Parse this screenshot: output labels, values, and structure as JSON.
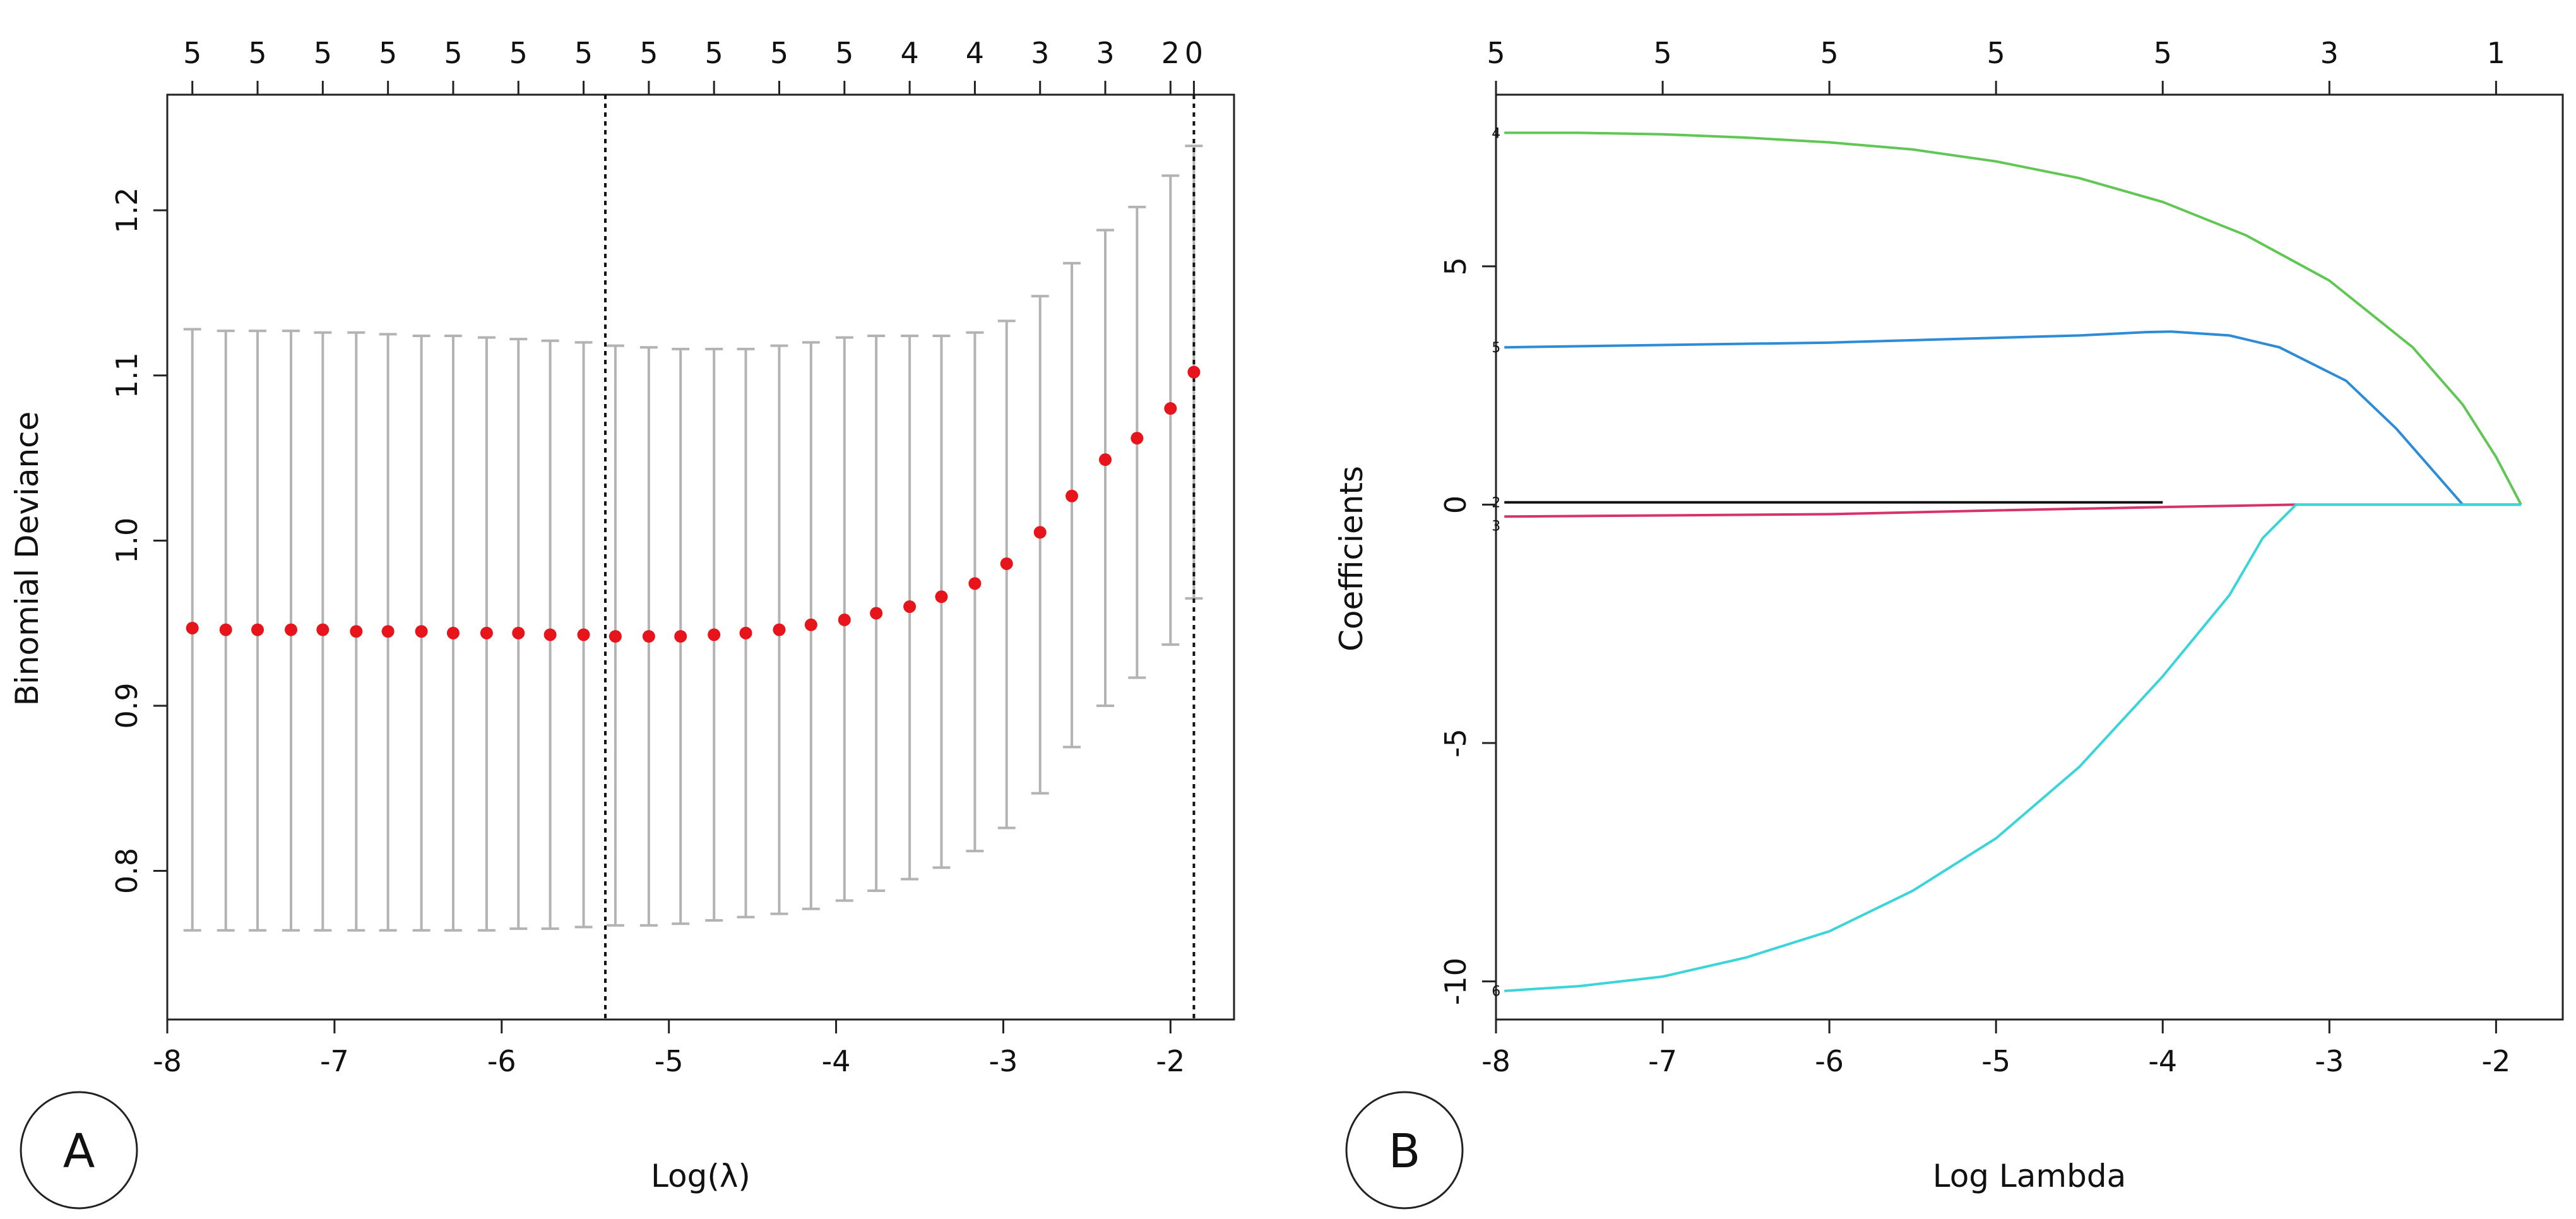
{
  "colors": {
    "errorbar": "#b3b3b3",
    "point": "#e8141c",
    "refline": "#111111",
    "axis": "#222222",
    "series": [
      "#111111",
      "#d6336c",
      "#61c754",
      "#2e8bd6",
      "#3ad4d9"
    ]
  },
  "chart_data": [
    {
      "type": "scatter",
      "panel": "A",
      "title": "",
      "xlabel": "Log(λ)",
      "ylabel": "Binomial Deviance",
      "xlim": [
        -8.0,
        -1.62
      ],
      "ylim": [
        0.71,
        1.27
      ],
      "xticks": [
        -8,
        -7,
        -6,
        -5,
        -4,
        -3,
        -2
      ],
      "xtick_labels": [
        "-8",
        "-7",
        "-6",
        "-5",
        "-4",
        "-3",
        "-2"
      ],
      "yticks": [
        0.8,
        0.9,
        1.0,
        1.1,
        1.2
      ],
      "ytick_labels": [
        "0.8",
        "0.9",
        "1.0",
        "1.1",
        "1.2"
      ],
      "top_axis_positions": [
        -7.85,
        -7.46,
        -7.07,
        -6.68,
        -6.29,
        -5.9,
        -5.51,
        -5.12,
        -4.73,
        -4.34,
        -3.95,
        -3.56,
        -3.17,
        -2.78,
        -2.39,
        -2.0,
        -1.86
      ],
      "top_axis_labels": [
        "5",
        "5",
        "5",
        "5",
        "5",
        "5",
        "5",
        "5",
        "5",
        "5",
        "5",
        "4",
        "4",
        "3",
        "3",
        "2",
        "0"
      ],
      "vlines": [
        -5.38,
        -1.86
      ],
      "points": [
        {
          "x": -7.85,
          "y": 0.947,
          "lo": 0.764,
          "hi": 1.128
        },
        {
          "x": -7.65,
          "y": 0.946,
          "lo": 0.764,
          "hi": 1.127
        },
        {
          "x": -7.46,
          "y": 0.946,
          "lo": 0.764,
          "hi": 1.127
        },
        {
          "x": -7.26,
          "y": 0.946,
          "lo": 0.764,
          "hi": 1.127
        },
        {
          "x": -7.07,
          "y": 0.946,
          "lo": 0.764,
          "hi": 1.126
        },
        {
          "x": -6.87,
          "y": 0.945,
          "lo": 0.764,
          "hi": 1.126
        },
        {
          "x": -6.68,
          "y": 0.945,
          "lo": 0.764,
          "hi": 1.125
        },
        {
          "x": -6.48,
          "y": 0.945,
          "lo": 0.764,
          "hi": 1.124
        },
        {
          "x": -6.29,
          "y": 0.944,
          "lo": 0.764,
          "hi": 1.124
        },
        {
          "x": -6.09,
          "y": 0.944,
          "lo": 0.764,
          "hi": 1.123
        },
        {
          "x": -5.9,
          "y": 0.944,
          "lo": 0.765,
          "hi": 1.122
        },
        {
          "x": -5.71,
          "y": 0.943,
          "lo": 0.765,
          "hi": 1.121
        },
        {
          "x": -5.51,
          "y": 0.943,
          "lo": 0.766,
          "hi": 1.12
        },
        {
          "x": -5.32,
          "y": 0.942,
          "lo": 0.767,
          "hi": 1.118
        },
        {
          "x": -5.12,
          "y": 0.942,
          "lo": 0.767,
          "hi": 1.117
        },
        {
          "x": -4.93,
          "y": 0.942,
          "lo": 0.768,
          "hi": 1.116
        },
        {
          "x": -4.73,
          "y": 0.943,
          "lo": 0.77,
          "hi": 1.116
        },
        {
          "x": -4.54,
          "y": 0.944,
          "lo": 0.772,
          "hi": 1.116
        },
        {
          "x": -4.34,
          "y": 0.946,
          "lo": 0.774,
          "hi": 1.118
        },
        {
          "x": -4.15,
          "y": 0.949,
          "lo": 0.777,
          "hi": 1.12
        },
        {
          "x": -3.95,
          "y": 0.952,
          "lo": 0.782,
          "hi": 1.123
        },
        {
          "x": -3.76,
          "y": 0.956,
          "lo": 0.788,
          "hi": 1.124
        },
        {
          "x": -3.56,
          "y": 0.96,
          "lo": 0.795,
          "hi": 1.124
        },
        {
          "x": -3.37,
          "y": 0.966,
          "lo": 0.802,
          "hi": 1.124
        },
        {
          "x": -3.17,
          "y": 0.974,
          "lo": 0.812,
          "hi": 1.126
        },
        {
          "x": -2.98,
          "y": 0.986,
          "lo": 0.826,
          "hi": 1.133
        },
        {
          "x": -2.78,
          "y": 1.005,
          "lo": 0.847,
          "hi": 1.148
        },
        {
          "x": -2.59,
          "y": 1.027,
          "lo": 0.875,
          "hi": 1.168
        },
        {
          "x": -2.39,
          "y": 1.049,
          "lo": 0.9,
          "hi": 1.188
        },
        {
          "x": -2.2,
          "y": 1.062,
          "lo": 0.917,
          "hi": 1.202
        },
        {
          "x": -2.0,
          "y": 1.08,
          "lo": 0.937,
          "hi": 1.221
        },
        {
          "x": -1.86,
          "y": 1.102,
          "lo": 0.965,
          "hi": 1.239
        }
      ]
    },
    {
      "type": "line",
      "panel": "B",
      "title": "",
      "xlabel": "Log Lambda",
      "ylabel": "Coefficients",
      "xlim": [
        -8.0,
        -1.6
      ],
      "ylim": [
        -10.8,
        8.6
      ],
      "xticks": [
        -8,
        -7,
        -6,
        -5,
        -4,
        -3,
        -2
      ],
      "xtick_labels": [
        "-8",
        "-7",
        "-6",
        "-5",
        "-4",
        "-3",
        "-2"
      ],
      "yticks": [
        -10,
        -5,
        0,
        5
      ],
      "ytick_labels": [
        "-10",
        "-5",
        "0",
        "5"
      ],
      "top_axis_positions": [
        -8,
        -7,
        -6,
        -5,
        -4,
        -3,
        -2
      ],
      "top_axis_labels": [
        "5",
        "5",
        "5",
        "5",
        "5",
        "3",
        "1"
      ],
      "series": [
        {
          "name": "2",
          "x": [
            -7.95,
            -4.0
          ],
          "y": [
            0.05,
            0.05
          ]
        },
        {
          "name": "3",
          "x": [
            -7.95,
            -6.0,
            -5.0,
            -4.0,
            -3.2,
            -1.85
          ],
          "y": [
            -0.25,
            -0.2,
            -0.12,
            -0.05,
            0.0,
            0.0
          ]
        },
        {
          "name": "4",
          "x": [
            -7.95,
            -7.5,
            -7.0,
            -6.5,
            -6.0,
            -5.5,
            -5.0,
            -4.5,
            -4.0,
            -3.5,
            -3.0,
            -2.5,
            -2.2,
            -2.0,
            -1.85
          ],
          "y": [
            7.8,
            7.8,
            7.77,
            7.7,
            7.6,
            7.45,
            7.2,
            6.85,
            6.35,
            5.65,
            4.7,
            3.3,
            2.1,
            1.0,
            0.0
          ]
        },
        {
          "name": "5",
          "x": [
            -7.95,
            -7.0,
            -6.0,
            -5.0,
            -4.5,
            -4.1,
            -3.95,
            -3.6,
            -3.3,
            -2.9,
            -2.6,
            -2.35,
            -2.2,
            -1.85
          ],
          "y": [
            3.3,
            3.35,
            3.4,
            3.5,
            3.55,
            3.62,
            3.63,
            3.55,
            3.3,
            2.6,
            1.6,
            0.6,
            0.0,
            0.0
          ]
        },
        {
          "name": "6",
          "x": [
            -7.95,
            -7.5,
            -7.0,
            -6.5,
            -6.0,
            -5.5,
            -5.0,
            -4.5,
            -4.0,
            -3.6,
            -3.4,
            -3.2,
            -1.85
          ],
          "y": [
            -10.2,
            -10.1,
            -9.9,
            -9.5,
            -8.95,
            -8.1,
            -7.0,
            -5.5,
            -3.6,
            -1.9,
            -0.7,
            0.0,
            0.0
          ]
        }
      ],
      "line_labels": [
        "2",
        "3",
        "4",
        "5",
        "6"
      ]
    }
  ],
  "panel_labels": [
    "A",
    "B"
  ]
}
